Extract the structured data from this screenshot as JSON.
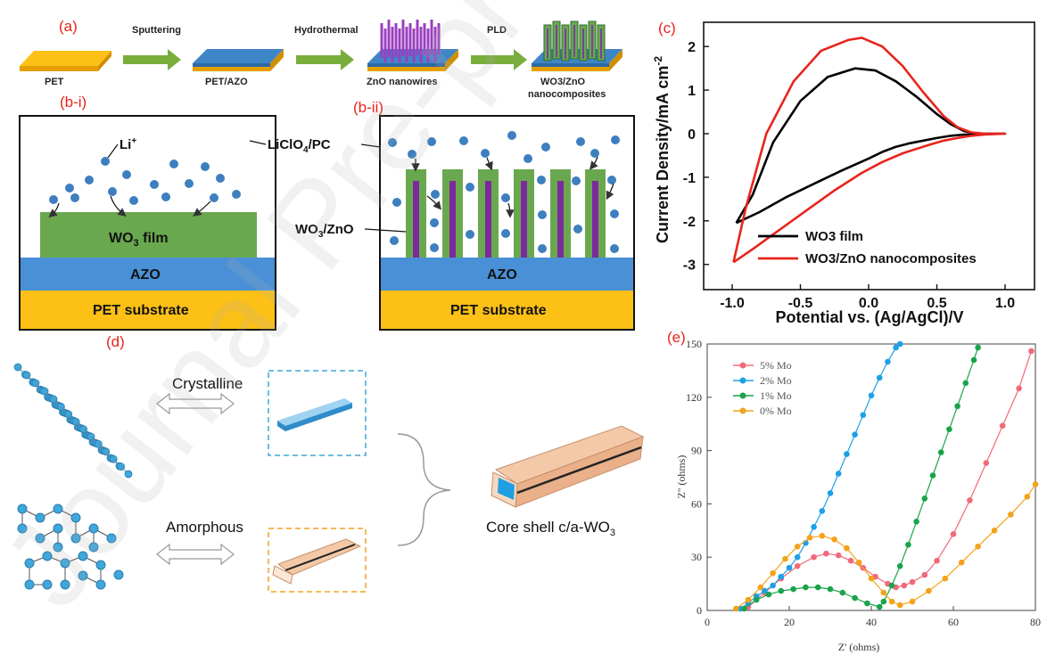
{
  "watermark": "Journal Pre-proof",
  "panel_a": {
    "label": "(a)",
    "stages": [
      "PET",
      "PET/AZO",
      "ZnO nanowires",
      "WO3/ZnO",
      "nanocomposites"
    ],
    "arrows": [
      "Sputtering",
      "Hydrothermal",
      "PLD"
    ]
  },
  "panel_b": {
    "label_i": "(b-i)",
    "label_ii": "(b-ii)",
    "li": "Li",
    "li_sup": "+",
    "electrolyte": "LiClO",
    "electrolyte_sub": "4",
    "electrolyte_tail": "/PC",
    "film_a": "WO",
    "film_sub": "3",
    "film_b": " film",
    "composite_a": "WO",
    "composite_sub": "3",
    "composite_b": "/ZnO",
    "azo": "AZO",
    "pet": "PET substrate"
  },
  "panel_c": {
    "label": "(c)",
    "chart_data": {
      "type": "line",
      "xlabel": "Potential vs. (Ag/AgCl)/V",
      "ylabel": "Current Density/mA cm",
      "ylabel_sup": "-2",
      "xlim": [
        -1.0,
        1.0
      ],
      "ylim": [
        -3,
        2
      ],
      "xticks": [
        "-1.0",
        "-0.5",
        "0.0",
        "0.5",
        "1.0"
      ],
      "yticks": [
        "-3",
        "-2",
        "-1",
        "0",
        "1",
        "2"
      ],
      "legend_position": "bottom-right",
      "series": [
        {
          "name": "WO3 film",
          "color": "#000000",
          "x": [
            -0.97,
            -0.85,
            -0.7,
            -0.5,
            -0.3,
            -0.1,
            0.05,
            0.2,
            0.35,
            0.5,
            0.6,
            0.7,
            0.8,
            0.9,
            1.0,
            0.9,
            0.8,
            0.7,
            0.6,
            0.5,
            0.4,
            0.3,
            0.2,
            0.1,
            0.0,
            -0.2,
            -0.4,
            -0.6,
            -0.8,
            -0.97
          ],
          "y": [
            -2.05,
            -1.4,
            -0.2,
            0.75,
            1.3,
            1.5,
            1.45,
            1.2,
            0.85,
            0.45,
            0.22,
            0.06,
            0.0,
            0.0,
            0.0,
            0.0,
            -0.01,
            -0.02,
            -0.05,
            -0.1,
            -0.16,
            -0.22,
            -0.3,
            -0.42,
            -0.57,
            -0.85,
            -1.15,
            -1.45,
            -1.8,
            -2.05
          ]
        },
        {
          "name": "WO3/ZnO nanocomposites",
          "color": "#e8241c",
          "x": [
            -0.99,
            -0.9,
            -0.75,
            -0.55,
            -0.35,
            -0.15,
            -0.05,
            0.1,
            0.25,
            0.4,
            0.55,
            0.65,
            0.75,
            0.85,
            1.0,
            0.85,
            0.75,
            0.65,
            0.55,
            0.45,
            0.35,
            0.25,
            0.1,
            -0.05,
            -0.25,
            -0.45,
            -0.65,
            -0.85,
            -0.99
          ],
          "y": [
            -2.95,
            -1.7,
            0.0,
            1.2,
            1.9,
            2.15,
            2.2,
            2.0,
            1.55,
            0.95,
            0.4,
            0.15,
            0.03,
            0.0,
            0.0,
            -0.02,
            -0.05,
            -0.1,
            -0.16,
            -0.25,
            -0.35,
            -0.45,
            -0.65,
            -0.9,
            -1.3,
            -1.75,
            -2.2,
            -2.65,
            -2.95
          ]
        }
      ]
    }
  },
  "panel_d": {
    "label": "(d)",
    "crystalline": "Crystalline",
    "amorphous": "Amorphous",
    "core_shell": "Core shell c/a-WO",
    "core_shell_sub": "3"
  },
  "panel_e": {
    "label": "(e)",
    "chart_data": {
      "type": "scatter",
      "xlabel": "Z' (ohms)",
      "ylabel": "Z'' (ohms)",
      "xlim": [
        0,
        80
      ],
      "ylim": [
        0,
        150
      ],
      "xticks": [
        "0",
        "20",
        "40",
        "60",
        "80"
      ],
      "yticks": [
        "0",
        "30",
        "60",
        "90",
        "120",
        "150"
      ],
      "legend_position": "top-left",
      "series": [
        {
          "name": "5% Mo",
          "color": "#f06a7a",
          "x": [
            10,
            14,
            18,
            22,
            26,
            29,
            32,
            35,
            38,
            41,
            44,
            46,
            48,
            50,
            53,
            56,
            60,
            64,
            68,
            72,
            76,
            79
          ],
          "y": [
            2,
            10,
            18,
            25,
            30,
            32,
            31,
            28,
            24,
            19,
            15,
            13,
            14,
            16,
            20,
            28,
            43,
            62,
            83,
            104,
            125,
            146
          ]
        },
        {
          "name": "2% Mo",
          "color": "#1ea0e6",
          "x": [
            8,
            10,
            12,
            14,
            16,
            18,
            20,
            22,
            24,
            26,
            28,
            30,
            32,
            34,
            36,
            38,
            40,
            42,
            44,
            46,
            47
          ],
          "y": [
            1,
            4,
            8,
            11,
            14,
            19,
            24,
            30,
            38,
            47,
            56,
            66,
            77,
            88,
            99,
            110,
            121,
            131,
            140,
            148,
            150
          ]
        },
        {
          "name": "1% Mo",
          "color": "#1aa34a",
          "x": [
            9,
            12,
            15,
            18,
            21,
            24,
            27,
            30,
            33,
            36,
            39,
            42,
            43,
            45,
            47,
            49,
            51,
            53,
            55,
            57,
            59,
            61,
            63,
            65,
            66
          ],
          "y": [
            1,
            6,
            9,
            11,
            12,
            13,
            13,
            12,
            10,
            7,
            4,
            2,
            5,
            14,
            25,
            37,
            50,
            63,
            76,
            89,
            102,
            115,
            128,
            141,
            148
          ]
        },
        {
          "name": "0% Mo",
          "color": "#f3a21b",
          "x": [
            7,
            10,
            13,
            16,
            19,
            22,
            25,
            28,
            31,
            34,
            37,
            40,
            43,
            45,
            47,
            50,
            54,
            58,
            62,
            66,
            70,
            74,
            78,
            80
          ],
          "y": [
            1,
            6,
            13,
            21,
            29,
            36,
            41,
            42,
            40,
            35,
            27,
            18,
            10,
            5,
            3,
            5,
            11,
            18,
            27,
            36,
            45,
            54,
            64,
            71
          ]
        }
      ]
    }
  }
}
